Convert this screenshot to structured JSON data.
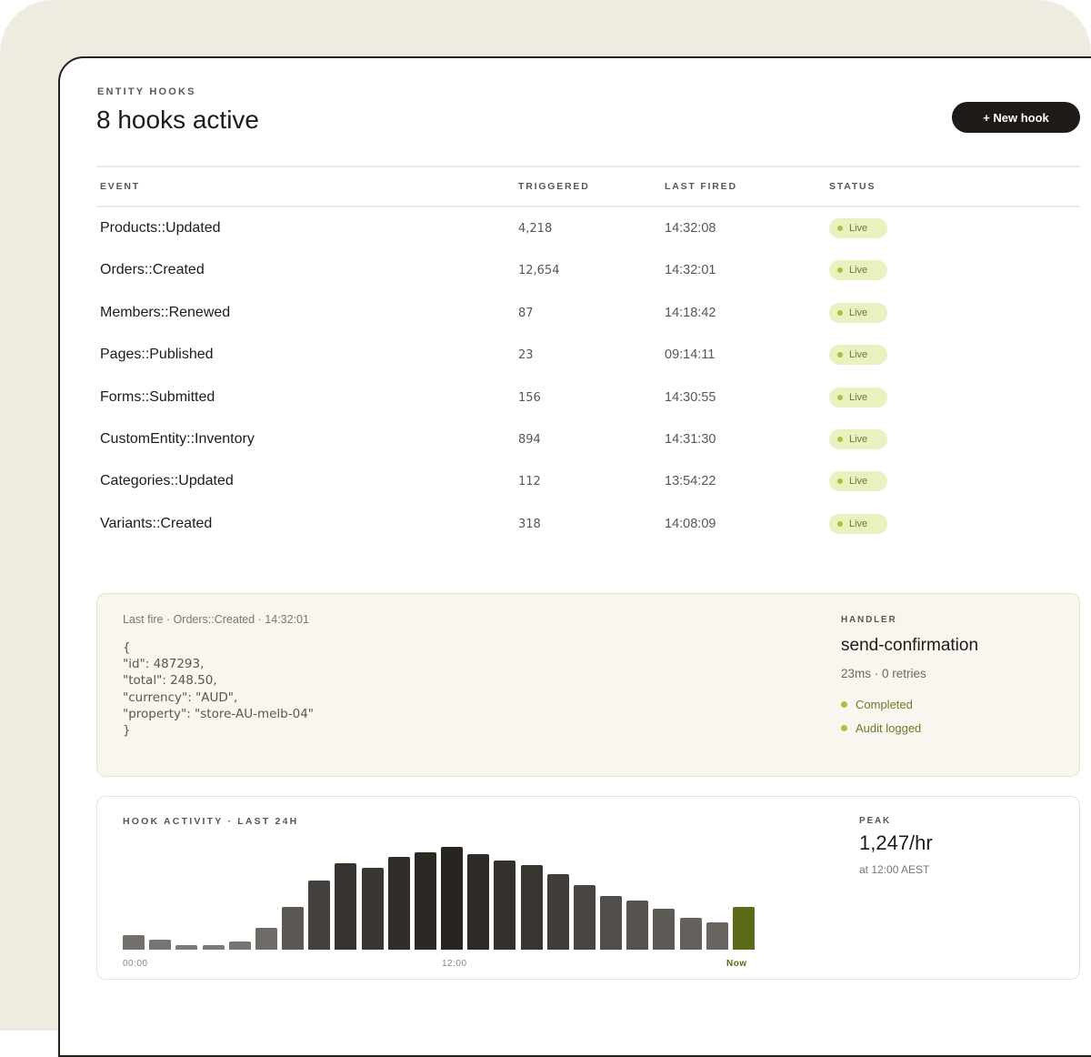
{
  "header": {
    "eyebrow": "ENTITY HOOKS",
    "title": "8 hooks active",
    "new_hook_label": "+ New hook"
  },
  "table": {
    "columns": [
      "EVENT",
      "TRIGGERED",
      "LAST FIRED",
      "STATUS"
    ],
    "rows": [
      {
        "event": "Products::Updated",
        "triggered": "4,218",
        "last_fired": "14:32:08",
        "status": "Live"
      },
      {
        "event": "Orders::Created",
        "triggered": "12,654",
        "last_fired": "14:32:01",
        "status": "Live"
      },
      {
        "event": "Members::Renewed",
        "triggered": "87",
        "last_fired": "14:18:42",
        "status": "Live"
      },
      {
        "event": "Pages::Published",
        "triggered": "23",
        "last_fired": "09:14:11",
        "status": "Live"
      },
      {
        "event": "Forms::Submitted",
        "triggered": "156",
        "last_fired": "14:30:55",
        "status": "Live"
      },
      {
        "event": "CustomEntity::Inventory",
        "triggered": "894",
        "last_fired": "14:31:30",
        "status": "Live"
      },
      {
        "event": "Categories::Updated",
        "triggered": "112",
        "last_fired": "13:54:22",
        "status": "Live"
      },
      {
        "event": "Variants::Created",
        "triggered": "318",
        "last_fired": "14:08:09",
        "status": "Live"
      }
    ]
  },
  "last_fire": {
    "label": "Last fire · Orders::Created · 14:32:01",
    "payload_lines": [
      "{",
      "\"id\": 487293,",
      "\"total\": 248.50,",
      "\"currency\": \"AUD\",",
      "\"property\": \"store-AU-melb-04\"",
      "}"
    ]
  },
  "handler": {
    "eyebrow": "HANDLER",
    "name": "send-confirmation",
    "meta": "23ms · 0 retries",
    "checks": [
      "Completed",
      "Audit logged"
    ]
  },
  "activity": {
    "title": "HOOK ACTIVITY · LAST 24H",
    "axis_labels": [
      "00:00",
      "12:00",
      "Now"
    ],
    "peak_eyebrow": "PEAK",
    "peak_value": "1,247/hr",
    "peak_sub": "at 12:00 AEST"
  },
  "chart_data": {
    "type": "bar",
    "title": "HOOK ACTIVITY · LAST 24H",
    "x_tick_labels": [
      "00:00",
      "12:00",
      "Now"
    ],
    "values": [
      180,
      120,
      60,
      60,
      100,
      260,
      520,
      840,
      1050,
      990,
      1120,
      1180,
      1247,
      1160,
      1080,
      1020,
      910,
      780,
      650,
      590,
      500,
      390,
      330,
      520
    ],
    "ylim": [
      0,
      1300
    ],
    "highlight_last": true,
    "colors": {
      "current": "#5a6b1a"
    }
  },
  "colors": {
    "accent": "#5a6b1a",
    "live_bg": "#eaf0c0",
    "live_dot": "#a3c43c",
    "dark": "#1e1b18"
  }
}
